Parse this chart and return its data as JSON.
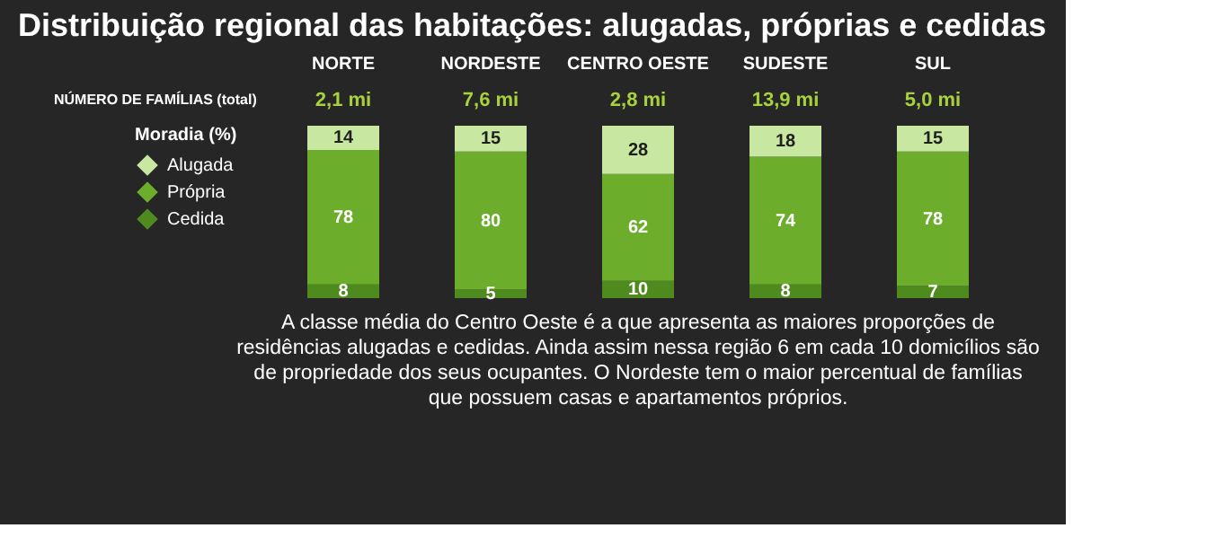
{
  "chart_data": {
    "type": "bar",
    "stacked": true,
    "data_labels": true,
    "legend": "left",
    "grid": false,
    "title": "Distribuição regional das habitações: alugadas, próprias e cedidas",
    "legend_title": "Moradia (%)",
    "categories": [
      "NORTE",
      "NORDESTE",
      "CENTRO OESTE",
      "SUDESTE",
      "SUL"
    ],
    "series": [
      {
        "name": "Cedida",
        "color": "#4f8a1f",
        "values": [
          8,
          5,
          10,
          8,
          7
        ]
      },
      {
        "name": "Própria",
        "color": "#6cae2c",
        "values": [
          78,
          80,
          62,
          74,
          78
        ]
      },
      {
        "name": "Alugada",
        "color": "#c8e8a2",
        "values": [
          14,
          15,
          28,
          18,
          15
        ]
      }
    ],
    "annotations": [
      "NÚMERO DE FAMÍLIAS (total)",
      "2,1 mi",
      "7,6 mi",
      "2,8 mi",
      "13,9 mi",
      "5,0 mi",
      "A classe média do Centro Oeste é a que apresenta as maiores proporções de\nresidências alugadas e cedidas. Ainda assim nessa região 6 em cada 10 domicílios são\nde propriedade dos seus ocupantes. O Nordeste tem o maior percentual de famílias\nque possuem casas e apartamentos próprios."
    ]
  }
}
